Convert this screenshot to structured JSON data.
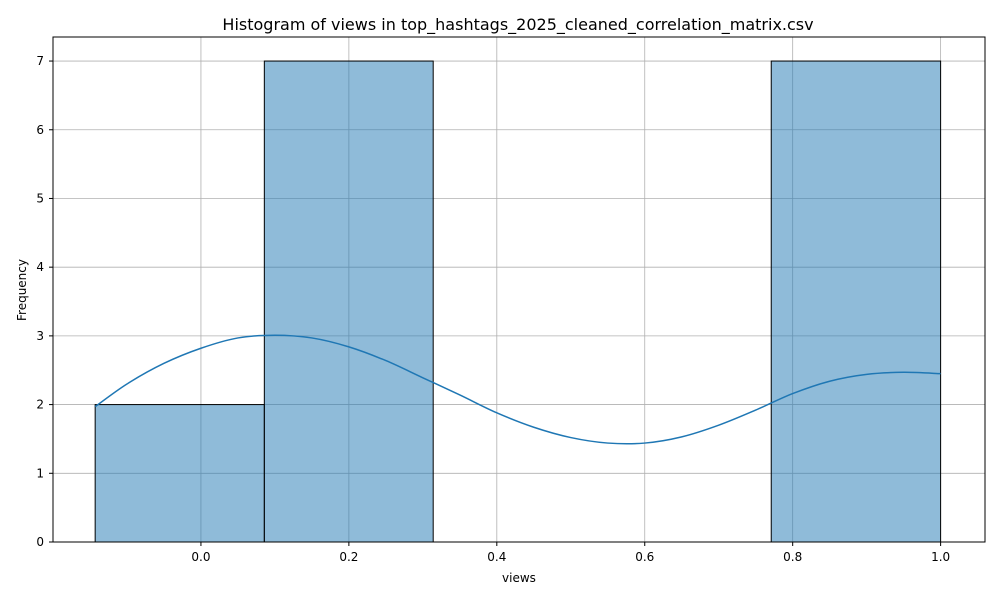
{
  "chart_data": {
    "type": "histogram",
    "title": "Histogram of views in top_hashtags_2025_cleaned_correlation_matrix.csv",
    "xlabel": "views",
    "ylabel": "Frequency",
    "xlim": [
      -0.2,
      1.06
    ],
    "ylim": [
      0,
      7.35
    ],
    "x_ticks": [
      0.0,
      0.2,
      0.4,
      0.6,
      0.8,
      1.0
    ],
    "x_tick_labels": [
      "0.0",
      "0.2",
      "0.4",
      "0.6",
      "0.8",
      "1.0"
    ],
    "y_ticks": [
      0,
      1,
      2,
      3,
      4,
      5,
      6,
      7
    ],
    "y_tick_labels": [
      "0",
      "1",
      "2",
      "3",
      "4",
      "5",
      "6",
      "7"
    ],
    "grid": true,
    "bins": [
      {
        "x0": -0.143,
        "x1": 0.0857,
        "count": 2
      },
      {
        "x0": 0.0857,
        "x1": 0.314,
        "count": 7
      },
      {
        "x0": 0.314,
        "x1": 0.543,
        "count": 0
      },
      {
        "x0": 0.543,
        "x1": 0.771,
        "count": 0
      },
      {
        "x0": 0.771,
        "x1": 1.0,
        "count": 7
      }
    ],
    "kde": {
      "x": [
        -0.143,
        -0.1,
        -0.05,
        0.0,
        0.05,
        0.1,
        0.15,
        0.2,
        0.25,
        0.3,
        0.35,
        0.4,
        0.45,
        0.5,
        0.55,
        0.6,
        0.65,
        0.7,
        0.75,
        0.8,
        0.85,
        0.9,
        0.95,
        1.0
      ],
      "y": [
        1.97,
        2.3,
        2.6,
        2.82,
        2.97,
        3.01,
        2.97,
        2.84,
        2.64,
        2.39,
        2.14,
        1.88,
        1.67,
        1.52,
        1.44,
        1.44,
        1.53,
        1.7,
        1.92,
        2.16,
        2.34,
        2.44,
        2.47,
        2.45
      ]
    }
  }
}
